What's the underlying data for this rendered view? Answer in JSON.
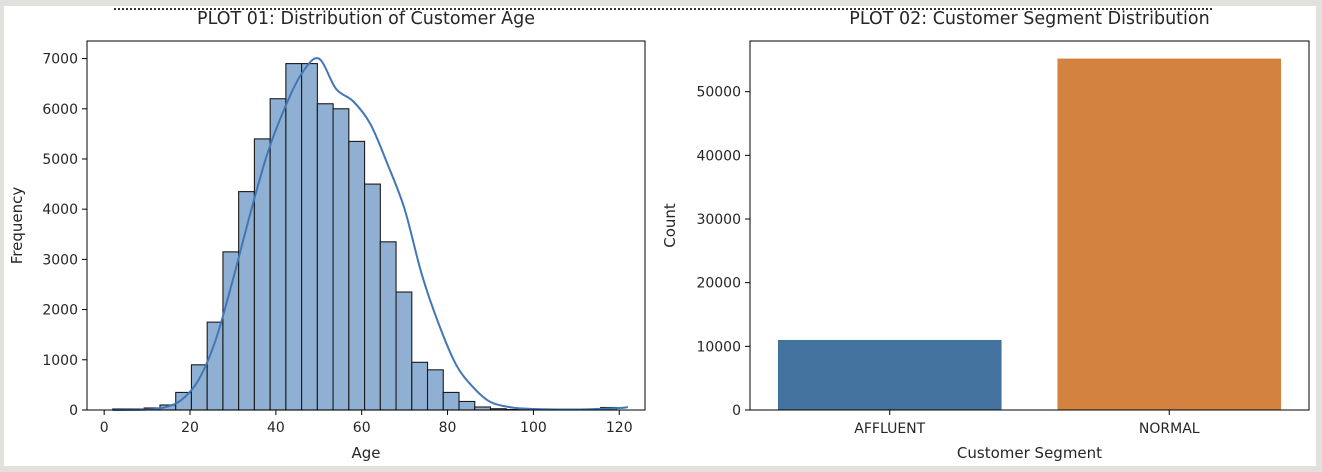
{
  "chart_data": [
    {
      "type": "bar",
      "subtype": "histogram",
      "title": "PLOT 01: Distribution of Customer Age",
      "xlabel": "Age",
      "ylabel": "Frequency",
      "xlim": [
        -4,
        126
      ],
      "ylim": [
        0,
        7350
      ],
      "xticks": [
        0,
        20,
        40,
        60,
        80,
        100,
        120
      ],
      "yticks": [
        0,
        1000,
        2000,
        3000,
        4000,
        5000,
        6000,
        7000
      ],
      "bin_width": 3.67,
      "bins": [
        {
          "x0": 2.0,
          "value": 20
        },
        {
          "x0": 5.67,
          "value": 20
        },
        {
          "x0": 9.33,
          "value": 40
        },
        {
          "x0": 13.0,
          "value": 100
        },
        {
          "x0": 16.67,
          "value": 350
        },
        {
          "x0": 20.33,
          "value": 900
        },
        {
          "x0": 24.0,
          "value": 1750
        },
        {
          "x0": 27.67,
          "value": 3150
        },
        {
          "x0": 31.33,
          "value": 4350
        },
        {
          "x0": 35.0,
          "value": 5400
        },
        {
          "x0": 38.67,
          "value": 6200
        },
        {
          "x0": 42.33,
          "value": 6900
        },
        {
          "x0": 46.0,
          "value": 6900
        },
        {
          "x0": 49.67,
          "value": 6100
        },
        {
          "x0": 53.33,
          "value": 6000
        },
        {
          "x0": 57.0,
          "value": 5350
        },
        {
          "x0": 60.67,
          "value": 4500
        },
        {
          "x0": 64.33,
          "value": 3350
        },
        {
          "x0": 68.0,
          "value": 2350
        },
        {
          "x0": 71.67,
          "value": 950
        },
        {
          "x0": 75.33,
          "value": 800
        },
        {
          "x0": 79.0,
          "value": 350
        },
        {
          "x0": 82.67,
          "value": 170
        },
        {
          "x0": 86.33,
          "value": 60
        },
        {
          "x0": 90.0,
          "value": 25
        },
        {
          "x0": 93.67,
          "value": 10
        },
        {
          "x0": 97.33,
          "value": 5
        },
        {
          "x0": 101.0,
          "value": 5
        },
        {
          "x0": 104.67,
          "value": 5
        },
        {
          "x0": 108.33,
          "value": 10
        },
        {
          "x0": 112.0,
          "value": 10
        },
        {
          "x0": 115.67,
          "value": 50
        }
      ],
      "kde": {
        "x": [
          2,
          10,
          14,
          18,
          22,
          26,
          30,
          34,
          38,
          42,
          46,
          50,
          54,
          58,
          62,
          66,
          70,
          74,
          78,
          82,
          86,
          90,
          95,
          100,
          110,
          120,
          122
        ],
        "y": [
          0,
          10,
          50,
          200,
          600,
          1400,
          2600,
          3900,
          5100,
          6000,
          6700,
          7000,
          6400,
          6150,
          5700,
          4900,
          4000,
          2700,
          1700,
          900,
          450,
          160,
          50,
          20,
          10,
          40,
          60
        ]
      },
      "colors": {
        "bar": "#8fb0d3",
        "edge": "#1a1a1a",
        "kde": "#4277b6"
      }
    },
    {
      "type": "bar",
      "title": "PLOT 02: Customer Segment Distribution",
      "xlabel": "Customer Segment",
      "ylabel": "Count",
      "categories": [
        "AFFLUENT",
        "NORMAL"
      ],
      "values": [
        11000,
        55200
      ],
      "ylim": [
        0,
        57960
      ],
      "yticks": [
        0,
        10000,
        20000,
        30000,
        40000,
        50000
      ],
      "colors": [
        "#44729e",
        "#d3833f"
      ]
    }
  ]
}
